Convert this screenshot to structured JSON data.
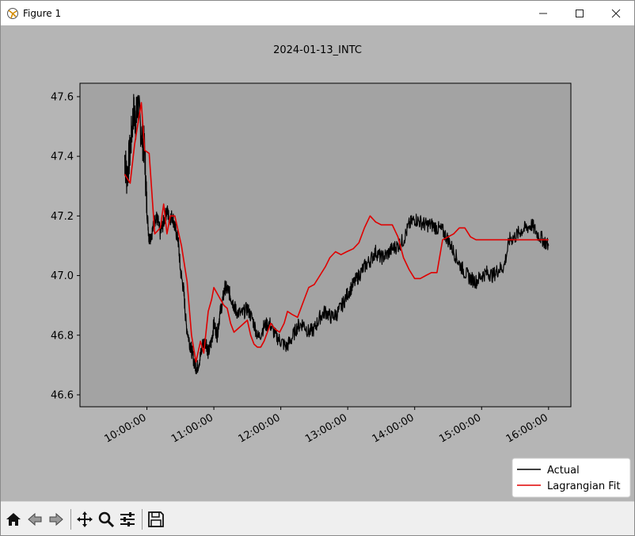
{
  "window": {
    "title": "Figure 1",
    "controls": {
      "minimize": "minimize",
      "maximize": "maximize",
      "close": "close"
    }
  },
  "toolbar": {
    "buttons": [
      {
        "name": "home",
        "icon": "home-icon"
      },
      {
        "name": "back",
        "icon": "back-arrow-icon"
      },
      {
        "name": "forward",
        "icon": "forward-arrow-icon"
      },
      {
        "name": "pan",
        "icon": "move-icon"
      },
      {
        "name": "zoom",
        "icon": "zoom-icon"
      },
      {
        "name": "configure-subplots",
        "icon": "sliders-icon"
      },
      {
        "name": "save",
        "icon": "save-icon"
      }
    ]
  },
  "chart_data": {
    "type": "line",
    "title": "2024-01-13_INTC",
    "xlabel": "",
    "ylabel": "",
    "x_ticks": [
      "10:00:00",
      "11:00:00",
      "12:00:00",
      "13:00:00",
      "14:00:00",
      "15:00:00",
      "16:00:00"
    ],
    "y_ticks": [
      46.6,
      46.8,
      47.0,
      47.2,
      47.4,
      47.6
    ],
    "xlim": [
      "09:00:00",
      "16:20:00"
    ],
    "ylim": [
      46.56,
      47.645
    ],
    "grid": false,
    "legend_position": "bottom-right",
    "colors": {
      "figure_bg": "#b5b5b5",
      "axes_bg": "#a3a3a3",
      "actual": "#000000",
      "fit": "#e00000"
    },
    "series": [
      {
        "name": "Actual",
        "color": "#000000",
        "x": [
          "09:40",
          "09:42",
          "09:45",
          "09:48",
          "09:50",
          "09:52",
          "09:55",
          "09:58",
          "10:00",
          "10:02",
          "10:05",
          "10:08",
          "10:10",
          "10:12",
          "10:15",
          "10:18",
          "10:20",
          "10:23",
          "10:25",
          "10:28",
          "10:30",
          "10:33",
          "10:35",
          "10:38",
          "10:40",
          "10:43",
          "10:45",
          "10:48",
          "10:50",
          "10:53",
          "10:55",
          "10:58",
          "11:00",
          "11:03",
          "11:05",
          "11:08",
          "11:10",
          "11:13",
          "11:15",
          "11:18",
          "11:20",
          "11:25",
          "11:30",
          "11:35",
          "11:40",
          "11:45",
          "11:50",
          "11:55",
          "12:00",
          "12:05",
          "12:10",
          "12:15",
          "12:20",
          "12:25",
          "12:30",
          "12:35",
          "12:40",
          "12:45",
          "12:50",
          "12:55",
          "13:00",
          "13:05",
          "13:10",
          "13:15",
          "13:20",
          "13:25",
          "13:30",
          "13:35",
          "13:40",
          "13:45",
          "13:50",
          "13:55",
          "14:00",
          "14:05",
          "14:10",
          "14:15",
          "14:20",
          "14:25",
          "14:30",
          "14:35",
          "14:40",
          "14:45",
          "14:50",
          "14:55",
          "15:00",
          "15:05",
          "15:10",
          "15:15",
          "15:20",
          "15:25",
          "15:30",
          "15:35",
          "15:40",
          "15:45",
          "15:50",
          "15:55",
          "16:00"
        ],
        "y": [
          47.4,
          47.33,
          47.42,
          47.55,
          47.52,
          47.57,
          47.48,
          47.42,
          47.22,
          47.12,
          47.15,
          47.2,
          47.18,
          47.14,
          47.18,
          47.22,
          47.19,
          47.2,
          47.16,
          47.12,
          47.02,
          46.95,
          46.84,
          46.78,
          46.75,
          46.7,
          46.69,
          46.73,
          46.77,
          46.78,
          46.74,
          46.78,
          46.84,
          46.8,
          46.86,
          46.92,
          46.96,
          46.95,
          46.93,
          46.9,
          46.88,
          46.87,
          46.89,
          46.85,
          46.79,
          46.83,
          46.84,
          46.8,
          46.78,
          46.76,
          46.79,
          46.83,
          46.84,
          46.81,
          46.82,
          46.86,
          46.88,
          46.86,
          46.87,
          46.9,
          46.94,
          46.97,
          47.0,
          47.03,
          47.05,
          47.08,
          47.06,
          47.07,
          47.09,
          47.1,
          47.12,
          47.17,
          47.19,
          47.18,
          47.17,
          47.17,
          47.16,
          47.15,
          47.12,
          47.08,
          47.04,
          47.01,
          46.99,
          46.98,
          47.0,
          47.01,
          47.0,
          47.02,
          47.03,
          47.12,
          47.13,
          47.15,
          47.16,
          47.17,
          47.14,
          47.12,
          47.1
        ]
      },
      {
        "name": "Lagrangian Fit",
        "color": "#e00000",
        "x": [
          "09:40",
          "09:45",
          "09:49",
          "09:55",
          "09:58",
          "10:02",
          "10:07",
          "10:12",
          "10:15",
          "10:18",
          "10:21",
          "10:25",
          "10:28",
          "10:31",
          "10:36",
          "10:40",
          "10:44",
          "10:48",
          "10:51",
          "10:55",
          "10:58",
          "11:00",
          "11:03",
          "11:06",
          "11:09",
          "11:12",
          "11:15",
          "11:18",
          "11:24",
          "11:30",
          "11:33",
          "11:36",
          "11:39",
          "11:42",
          "11:45",
          "11:48",
          "11:51",
          "11:55",
          "11:59",
          "12:03",
          "12:06",
          "12:10",
          "12:15",
          "12:20",
          "12:25",
          "12:30",
          "12:35",
          "12:40",
          "12:44",
          "12:49",
          "12:54",
          "12:59",
          "13:05",
          "13:10",
          "13:15",
          "13:20",
          "13:25",
          "13:30",
          "13:35",
          "13:40",
          "13:45",
          "13:50",
          "13:55",
          "14:00",
          "14:05",
          "14:10",
          "14:15",
          "14:20",
          "14:25",
          "14:30",
          "14:35",
          "14:40",
          "14:45",
          "14:50",
          "14:55",
          "15:00",
          "15:05",
          "15:10",
          "15:15",
          "15:20",
          "15:25",
          "15:30",
          "15:35",
          "15:40",
          "15:45",
          "15:50",
          "15:55",
          "16:00"
        ],
        "y": [
          47.34,
          47.31,
          47.44,
          47.58,
          47.42,
          47.41,
          47.14,
          47.16,
          47.24,
          47.14,
          47.2,
          47.2,
          47.15,
          47.1,
          46.98,
          46.8,
          46.71,
          46.78,
          46.74,
          46.88,
          46.92,
          46.96,
          46.94,
          46.92,
          46.9,
          46.89,
          46.84,
          46.81,
          46.83,
          46.85,
          46.8,
          46.77,
          46.76,
          46.76,
          46.78,
          46.81,
          46.84,
          46.82,
          46.81,
          46.84,
          46.88,
          46.87,
          46.86,
          46.91,
          46.96,
          46.97,
          47.0,
          47.03,
          47.06,
          47.08,
          47.07,
          47.08,
          47.09,
          47.11,
          47.16,
          47.2,
          47.18,
          47.17,
          47.17,
          47.17,
          47.13,
          47.06,
          47.02,
          46.99,
          46.99,
          47.0,
          47.01,
          47.01,
          47.12,
          47.13,
          47.14,
          47.16,
          47.16,
          47.13,
          47.12,
          47.12,
          47.12,
          47.12,
          47.12,
          47.12,
          47.12,
          47.12,
          47.12,
          47.12,
          47.12,
          47.12,
          47.12,
          47.12
        ]
      }
    ]
  }
}
